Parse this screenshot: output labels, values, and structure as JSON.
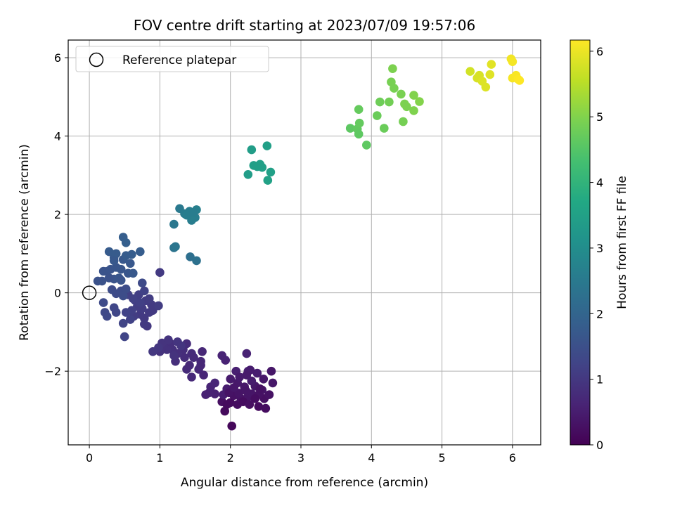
{
  "chart_data": {
    "type": "scatter",
    "title": "FOV centre drift starting at 2023/07/09 19:57:06",
    "xlabel": "Angular distance from reference (arcmin)",
    "ylabel": "Rotation from reference (arcmin)",
    "xlim": [
      -0.3,
      6.4
    ],
    "ylim": [
      -3.88,
      6.45
    ],
    "xticks": [
      0,
      1,
      2,
      3,
      4,
      5,
      6
    ],
    "yticks": [
      -2,
      0,
      2,
      4,
      6
    ],
    "grid": true,
    "legend": {
      "label": "Reference platepar",
      "position": "top-left",
      "x": 0,
      "y": 0
    },
    "colorbar": {
      "label": "Hours from first FF file",
      "min": 0,
      "max": 6.17,
      "ticks": [
        0,
        1,
        2,
        3,
        4,
        5,
        6
      ]
    },
    "points": [
      [
        2.02,
        -3.4,
        0.12
      ],
      [
        1.92,
        -3.02,
        0.15
      ],
      [
        2.0,
        -2.8,
        0.18
      ],
      [
        2.1,
        -2.85,
        0.2
      ],
      [
        1.88,
        -2.78,
        0.25
      ],
      [
        2.05,
        -2.62,
        0.28
      ],
      [
        2.15,
        -2.7,
        0.3
      ],
      [
        2.25,
        -2.65,
        0.33
      ],
      [
        2.3,
        -2.58,
        0.35
      ],
      [
        2.4,
        -2.9,
        0.18
      ],
      [
        2.5,
        -2.95,
        0.2
      ],
      [
        2.48,
        -2.7,
        0.25
      ],
      [
        2.55,
        -2.6,
        0.3
      ],
      [
        2.45,
        -2.48,
        0.35
      ],
      [
        2.35,
        -2.38,
        0.38
      ],
      [
        2.2,
        -2.4,
        0.4
      ],
      [
        2.1,
        -2.3,
        0.42
      ],
      [
        2.0,
        -2.2,
        0.45
      ],
      [
        1.95,
        -2.45,
        0.48
      ],
      [
        1.9,
        -2.6,
        0.5
      ],
      [
        2.08,
        -2.0,
        0.55
      ],
      [
        2.25,
        -2.0,
        0.55
      ],
      [
        2.38,
        -2.05,
        0.5
      ],
      [
        2.28,
        -1.97,
        0.48
      ],
      [
        2.6,
        -2.3,
        0.4
      ],
      [
        2.58,
        -2.0,
        0.38
      ],
      [
        2.23,
        -2.1,
        0.44
      ],
      [
        2.13,
        -2.15,
        0.46
      ],
      [
        2.3,
        -2.25,
        0.47
      ],
      [
        2.4,
        -2.6,
        0.3
      ],
      [
        1.98,
        -2.55,
        0.32
      ],
      [
        2.12,
        -2.56,
        0.34
      ],
      [
        2.22,
        -2.5,
        0.36
      ],
      [
        2.05,
        -2.42,
        0.39
      ],
      [
        2.35,
        -2.7,
        0.22
      ],
      [
        1.95,
        -2.85,
        0.16
      ],
      [
        2.18,
        -2.78,
        0.2
      ],
      [
        2.27,
        -2.85,
        0.24
      ],
      [
        2.42,
        -2.45,
        0.28
      ],
      [
        2.47,
        -2.2,
        0.4
      ],
      [
        2.23,
        -1.55,
        0.6
      ],
      [
        1.88,
        -1.6,
        0.62
      ],
      [
        1.93,
        -1.72,
        0.6
      ],
      [
        1.78,
        -2.58,
        0.58
      ],
      [
        1.7,
        -2.55,
        0.6
      ],
      [
        1.65,
        -2.6,
        0.58
      ],
      [
        1.72,
        -2.4,
        0.62
      ],
      [
        1.78,
        -2.3,
        0.65
      ],
      [
        1.62,
        -2.1,
        0.65
      ],
      [
        1.58,
        -1.85,
        0.68
      ],
      [
        1.6,
        -1.5,
        0.7
      ],
      [
        1.58,
        -1.75,
        0.7
      ],
      [
        1.45,
        -2.15,
        0.72
      ],
      [
        1.45,
        -1.55,
        0.75
      ],
      [
        1.38,
        -1.95,
        0.75
      ],
      [
        1.35,
        -1.65,
        0.78
      ],
      [
        1.33,
        -1.45,
        0.8
      ],
      [
        1.38,
        -1.3,
        0.78
      ],
      [
        1.25,
        -1.55,
        0.82
      ],
      [
        1.22,
        -1.75,
        0.82
      ],
      [
        1.18,
        -1.45,
        0.85
      ],
      [
        1.15,
        -1.3,
        0.85
      ],
      [
        1.1,
        -1.45,
        0.88
      ],
      [
        1.05,
        -1.35,
        0.88
      ],
      [
        1.0,
        -1.5,
        0.9
      ],
      [
        1.03,
        -1.28,
        0.92
      ],
      [
        1.12,
        -1.2,
        0.92
      ],
      [
        1.25,
        -1.25,
        0.95
      ],
      [
        1.3,
        -1.35,
        0.95
      ],
      [
        0.98,
        -1.4,
        0.98
      ],
      [
        0.9,
        -1.5,
        1.0
      ],
      [
        1.2,
        -1.6,
        0.9
      ],
      [
        1.48,
        -1.65,
        0.74
      ],
      [
        1.42,
        -1.85,
        0.73
      ],
      [
        1.55,
        -1.95,
        0.7
      ],
      [
        0.82,
        -0.85,
        1.0
      ],
      [
        0.78,
        -0.65,
        1.02
      ],
      [
        0.85,
        -0.5,
        1.05
      ],
      [
        0.72,
        -0.55,
        1.05
      ],
      [
        0.88,
        -0.3,
        1.05
      ],
      [
        0.8,
        -0.2,
        1.08
      ],
      [
        0.75,
        -0.4,
        1.08
      ],
      [
        0.68,
        -0.35,
        1.1
      ],
      [
        0.63,
        -0.6,
        1.1
      ],
      [
        0.65,
        -0.2,
        1.12
      ],
      [
        0.7,
        -0.05,
        1.12
      ],
      [
        0.85,
        -0.15,
        1.1
      ],
      [
        0.9,
        -0.45,
        1.05
      ],
      [
        0.98,
        -0.33,
        1.1
      ],
      [
        0.78,
        -0.8,
        1.02
      ],
      [
        0.72,
        -0.25,
        1.15
      ],
      [
        0.6,
        -0.45,
        1.15
      ],
      [
        0.55,
        -0.05,
        1.18
      ],
      [
        0.62,
        -0.15,
        1.18
      ],
      [
        0.78,
        0.05,
        1.2
      ],
      [
        1.0,
        0.52,
        1.05
      ],
      [
        0.58,
        -0.68,
        1.2
      ],
      [
        0.52,
        -0.5,
        1.22
      ],
      [
        0.48,
        -0.78,
        1.25
      ],
      [
        0.5,
        -1.12,
        1.25
      ],
      [
        0.35,
        -0.38,
        1.3
      ],
      [
        0.38,
        -0.5,
        1.3
      ],
      [
        0.22,
        -0.5,
        1.35
      ],
      [
        0.25,
        -0.6,
        1.35
      ],
      [
        0.2,
        -0.25,
        1.4
      ],
      [
        0.38,
        -0.02,
        1.4
      ],
      [
        0.32,
        0.08,
        1.42
      ],
      [
        0.45,
        0.05,
        1.42
      ],
      [
        0.52,
        0.1,
        1.45
      ],
      [
        0.48,
        -0.08,
        1.45
      ],
      [
        0.75,
        0.25,
        1.38
      ],
      [
        0.12,
        0.3,
        1.55
      ],
      [
        0.18,
        0.3,
        1.55
      ],
      [
        0.2,
        0.55,
        1.58
      ],
      [
        0.25,
        0.55,
        1.58
      ],
      [
        0.3,
        0.6,
        1.6
      ],
      [
        0.35,
        0.35,
        1.6
      ],
      [
        0.42,
        0.38,
        1.62
      ],
      [
        0.38,
        0.65,
        1.62
      ],
      [
        0.45,
        0.6,
        1.65
      ],
      [
        0.55,
        0.5,
        1.65
      ],
      [
        0.62,
        0.5,
        1.68
      ],
      [
        0.58,
        0.75,
        1.7
      ],
      [
        0.48,
        0.85,
        1.7
      ],
      [
        0.35,
        0.9,
        1.72
      ],
      [
        0.28,
        1.05,
        1.75
      ],
      [
        0.38,
        1.0,
        1.75
      ],
      [
        0.52,
        0.95,
        1.78
      ],
      [
        0.6,
        0.98,
        1.8
      ],
      [
        0.72,
        1.05,
        1.8
      ],
      [
        0.48,
        1.42,
        1.82
      ],
      [
        0.52,
        1.28,
        1.85
      ],
      [
        0.35,
        0.82,
        1.7
      ],
      [
        0.45,
        0.32,
        1.6
      ],
      [
        0.28,
        0.38,
        1.55
      ],
      [
        1.43,
        0.92,
        2.25
      ],
      [
        1.52,
        0.82,
        2.3
      ],
      [
        1.2,
        1.15,
        2.35
      ],
      [
        1.22,
        1.18,
        2.4
      ],
      [
        1.2,
        1.75,
        2.45
      ],
      [
        1.28,
        2.15,
        2.5
      ],
      [
        1.35,
        2.02,
        2.55
      ],
      [
        1.42,
        2.08,
        2.6
      ],
      [
        1.45,
        1.85,
        2.6
      ],
      [
        1.5,
        1.92,
        2.62
      ],
      [
        1.52,
        2.12,
        2.65
      ],
      [
        1.45,
        1.95,
        2.63
      ],
      [
        1.38,
        1.98,
        2.58
      ],
      [
        1.48,
        2.05,
        2.6
      ],
      [
        2.3,
        3.65,
        3.4
      ],
      [
        2.52,
        3.75,
        3.45
      ],
      [
        2.33,
        3.25,
        3.45
      ],
      [
        2.42,
        3.28,
        3.48
      ],
      [
        2.45,
        3.2,
        3.5
      ],
      [
        2.57,
        3.08,
        3.5
      ],
      [
        2.25,
        3.02,
        3.42
      ],
      [
        2.53,
        2.87,
        3.52
      ],
      [
        2.38,
        3.22,
        3.47
      ],
      [
        3.7,
        4.2,
        4.6
      ],
      [
        3.8,
        4.18,
        4.65
      ],
      [
        3.82,
        4.05,
        4.62
      ],
      [
        3.82,
        4.68,
        4.7
      ],
      [
        3.83,
        4.33,
        4.68
      ],
      [
        3.93,
        3.77,
        4.62
      ],
      [
        4.08,
        4.52,
        4.75
      ],
      [
        4.12,
        4.87,
        4.8
      ],
      [
        4.18,
        4.2,
        4.75
      ],
      [
        4.25,
        4.87,
        4.85
      ],
      [
        4.28,
        5.38,
        4.9
      ],
      [
        4.3,
        5.72,
        4.95
      ],
      [
        4.32,
        5.22,
        4.9
      ],
      [
        4.42,
        5.07,
        4.92
      ],
      [
        4.47,
        4.82,
        4.95
      ],
      [
        4.45,
        4.37,
        4.88
      ],
      [
        4.5,
        4.75,
        4.95
      ],
      [
        4.6,
        5.04,
        5.0
      ],
      [
        4.6,
        4.65,
        4.98
      ],
      [
        4.68,
        4.88,
        5.02
      ],
      [
        5.4,
        5.65,
        5.75
      ],
      [
        5.5,
        5.48,
        5.8
      ],
      [
        5.53,
        5.55,
        5.8
      ],
      [
        5.57,
        5.4,
        5.85
      ],
      [
        5.62,
        5.25,
        5.85
      ],
      [
        5.68,
        5.57,
        5.88
      ],
      [
        5.7,
        5.83,
        5.9
      ],
      [
        5.98,
        5.97,
        6.05
      ],
      [
        6.0,
        5.9,
        6.08
      ],
      [
        6.0,
        5.48,
        6.1
      ],
      [
        6.05,
        5.55,
        6.12
      ],
      [
        6.08,
        5.45,
        6.15
      ],
      [
        6.1,
        5.42,
        6.17
      ]
    ]
  }
}
